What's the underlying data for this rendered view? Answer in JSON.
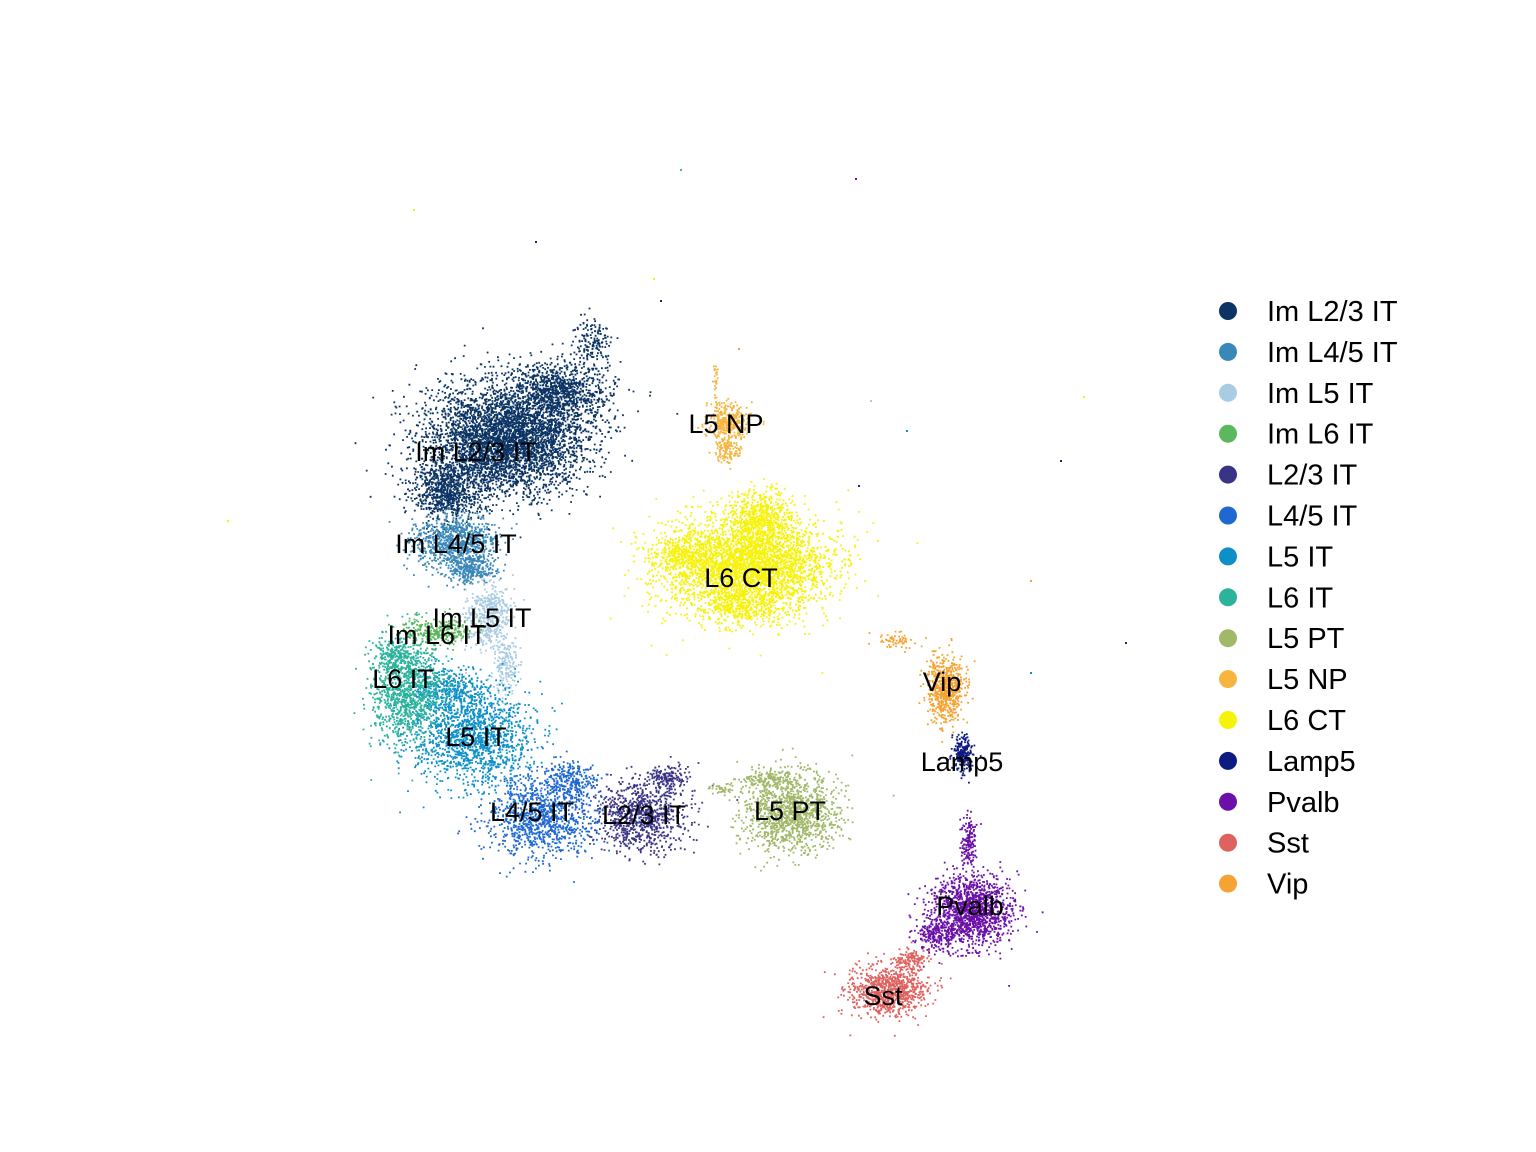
{
  "chart_data": {
    "type": "scatter",
    "title": "",
    "xlabel": "",
    "ylabel": "",
    "axes_visible": false,
    "grid": false,
    "legend_position": "right",
    "point_size": "tiny",
    "series": [
      {
        "name": "Im L2/3 IT",
        "color": "#0b3464",
        "label_at": [
          476,
          452
        ],
        "blobs": [
          [
            505,
            438,
            80,
            55,
            4200
          ],
          [
            560,
            390,
            50,
            28,
            900
          ],
          [
            592,
            340,
            20,
            22,
            160
          ],
          [
            445,
            490,
            34,
            32,
            800
          ]
        ]
      },
      {
        "name": "Im L4/5 IT",
        "color": "#3a87b9",
        "label_at": [
          456,
          544
        ],
        "blobs": [
          [
            455,
            542,
            40,
            28,
            900
          ],
          [
            470,
            570,
            25,
            15,
            250
          ]
        ]
      },
      {
        "name": "Im L5 IT",
        "color": "#a9cce2",
        "label_at": [
          482,
          618
        ],
        "blobs": [
          [
            487,
            615,
            22,
            32,
            450
          ],
          [
            505,
            665,
            12,
            30,
            180
          ]
        ]
      },
      {
        "name": "Im L6 IT",
        "color": "#5cb85c",
        "label_at": [
          437,
          635
        ],
        "blobs": [
          [
            438,
            630,
            35,
            14,
            300
          ]
        ]
      },
      {
        "name": "L2/3 IT",
        "color": "#3a3486",
        "label_at": [
          644,
          815
        ],
        "blobs": [
          [
            640,
            815,
            45,
            35,
            900
          ],
          [
            668,
            778,
            18,
            15,
            150
          ]
        ]
      },
      {
        "name": "L4/5 IT",
        "color": "#1f68d0",
        "label_at": [
          532,
          812
        ],
        "blobs": [
          [
            540,
            815,
            55,
            40,
            1100
          ],
          [
            570,
            780,
            25,
            20,
            250
          ]
        ]
      },
      {
        "name": "L5 IT",
        "color": "#0d90c8",
        "label_at": [
          476,
          737
        ],
        "blobs": [
          [
            470,
            735,
            60,
            48,
            1500
          ],
          [
            445,
            690,
            40,
            25,
            400
          ]
        ]
      },
      {
        "name": "L6 IT",
        "color": "#2bb39b",
        "label_at": [
          403,
          679
        ],
        "blobs": [
          [
            405,
            690,
            35,
            50,
            1000
          ],
          [
            395,
            655,
            22,
            15,
            200
          ]
        ]
      },
      {
        "name": "L5 PT",
        "color": "#a0b868",
        "label_at": [
          790,
          811
        ],
        "blobs": [
          [
            790,
            812,
            48,
            38,
            1300
          ],
          [
            768,
            778,
            25,
            10,
            150
          ],
          [
            720,
            788,
            15,
            5,
            40
          ]
        ]
      },
      {
        "name": "L5 NP",
        "color": "#f5b53e",
        "label_at": [
          726,
          424
        ],
        "blobs": [
          [
            727,
            420,
            20,
            18,
            350
          ],
          [
            727,
            450,
            12,
            14,
            120
          ],
          [
            715,
            380,
            3,
            20,
            25
          ]
        ]
      },
      {
        "name": "L6 CT",
        "color": "#f6f20a",
        "label_at": [
          741,
          578
        ],
        "blobs": [
          [
            745,
            565,
            80,
            50,
            3800
          ],
          [
            760,
            515,
            30,
            25,
            500
          ],
          [
            680,
            555,
            30,
            15,
            250
          ],
          [
            740,
            608,
            30,
            12,
            200
          ]
        ]
      },
      {
        "name": "Lamp5",
        "color": "#0d1a80",
        "label_at": [
          962,
          762
        ],
        "blobs": [
          [
            962,
            752,
            10,
            18,
            220
          ]
        ]
      },
      {
        "name": "Pvalb",
        "color": "#6a0fa8",
        "label_at": [
          970,
          906
        ],
        "blobs": [
          [
            970,
            910,
            40,
            35,
            1400
          ],
          [
            935,
            935,
            18,
            15,
            200
          ],
          [
            968,
            840,
            8,
            25,
            150
          ]
        ]
      },
      {
        "name": "Sst",
        "color": "#de6360",
        "label_at": [
          883,
          996
        ],
        "blobs": [
          [
            887,
            990,
            38,
            25,
            900
          ],
          [
            910,
            960,
            15,
            12,
            150
          ]
        ]
      },
      {
        "name": "Vip",
        "color": "#f5a333",
        "label_at": [
          942,
          682
        ],
        "blobs": [
          [
            945,
            688,
            18,
            32,
            650
          ],
          [
            895,
            640,
            22,
            8,
            60
          ]
        ]
      }
    ]
  }
}
